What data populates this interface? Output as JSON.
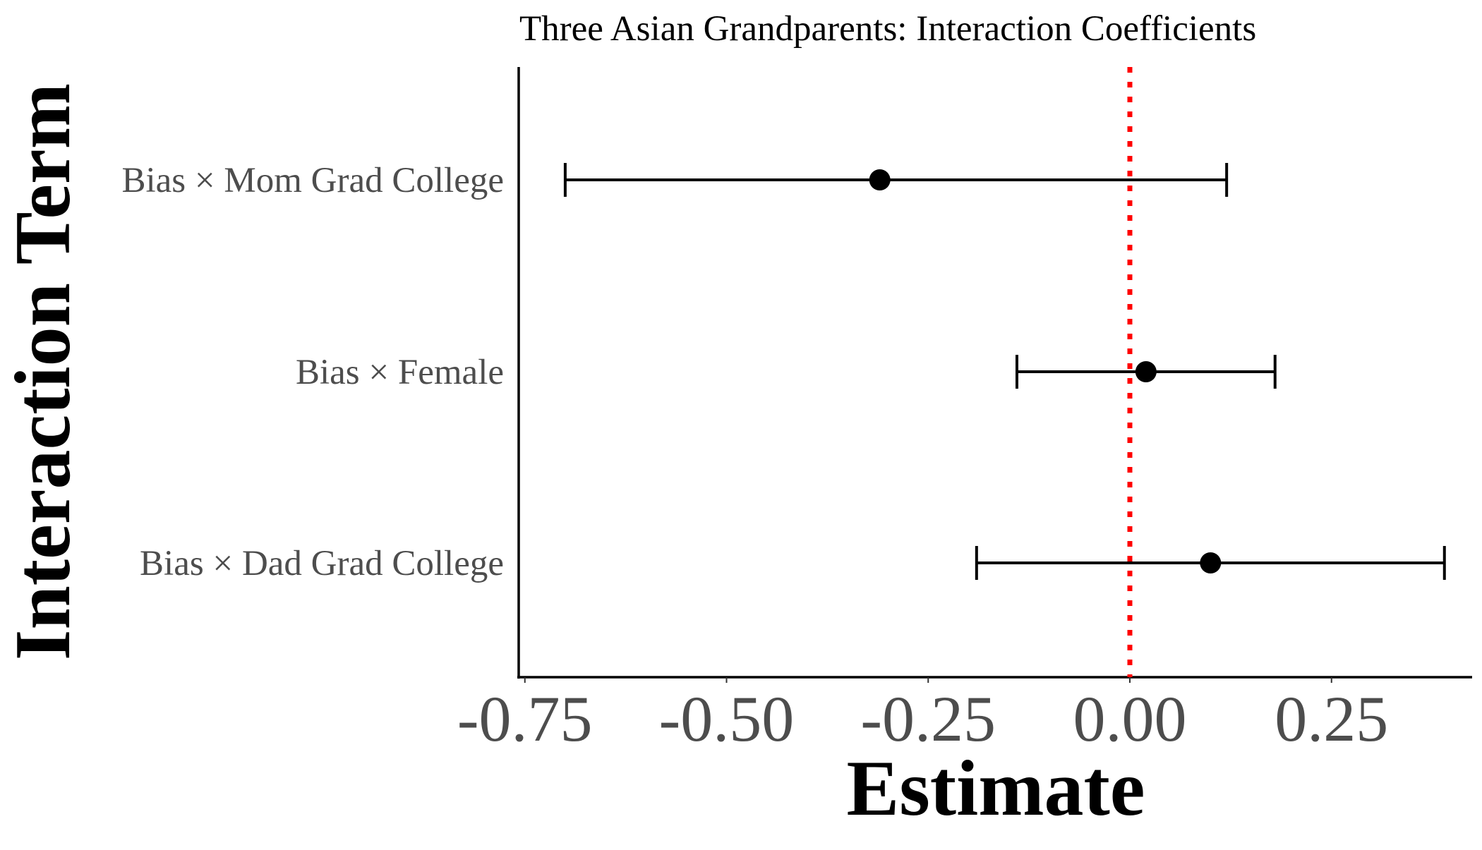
{
  "chart_data": {
    "type": "scatter",
    "subtype": "coefficient-plot-with-error-bars",
    "title": "Three Asian Grandparents: Interaction Coefficients",
    "xlabel": "Estimate",
    "ylabel": "Interaction Term",
    "xlim": [
      -0.83,
      0.43
    ],
    "x_ticks": [
      -0.75,
      -0.5,
      -0.25,
      0.0,
      0.25
    ],
    "x_tick_labels": [
      "-0.75",
      "-0.50",
      "-0.25",
      "0.00",
      "0.25"
    ],
    "reference_line": {
      "x": 0,
      "style": "dotted",
      "color": "#ff0000"
    },
    "grid": false,
    "legend": "none",
    "point_color": "#000000",
    "terms": [
      {
        "label": "Bias × Mom Grad College",
        "estimate": -0.31,
        "lower": -0.7,
        "upper": 0.12
      },
      {
        "label": "Bias × Female",
        "estimate": 0.02,
        "lower": -0.14,
        "upper": 0.18
      },
      {
        "label": "Bias × Dad Grad College",
        "estimate": 0.1,
        "lower": -0.19,
        "upper": 0.39
      }
    ]
  }
}
